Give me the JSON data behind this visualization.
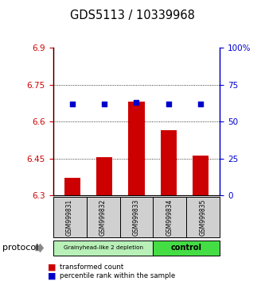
{
  "title": "GDS5113 / 10339968",
  "samples": [
    "GSM999831",
    "GSM999832",
    "GSM999833",
    "GSM999834",
    "GSM999835"
  ],
  "bar_values": [
    6.37,
    6.455,
    6.68,
    6.565,
    6.46
  ],
  "dot_values": [
    62,
    62,
    63,
    62,
    62
  ],
  "bar_bottom": 6.3,
  "ylim_left": [
    6.3,
    6.9
  ],
  "ylim_right": [
    0,
    100
  ],
  "yticks_left": [
    6.3,
    6.45,
    6.6,
    6.75,
    6.9
  ],
  "ytick_labels_left": [
    "6.3",
    "6.45",
    "6.6",
    "6.75",
    "6.9"
  ],
  "yticks_right": [
    0,
    25,
    50,
    75,
    100
  ],
  "ytick_labels_right": [
    "0",
    "25",
    "50",
    "75",
    "100%"
  ],
  "bar_color": "#cc0000",
  "dot_color": "#0000cc",
  "grid_lines": [
    6.45,
    6.6,
    6.75
  ],
  "group1_label": "Grainyhead-like 2 depletion",
  "group2_label": "control",
  "group1_color": "#b8f0b8",
  "group2_color": "#44dd44",
  "sample_box_color": "#d0d0d0",
  "protocol_label": "protocol",
  "legend_bar_label": "transformed count",
  "legend_dot_label": "percentile rank within the sample",
  "background_color": "#ffffff"
}
